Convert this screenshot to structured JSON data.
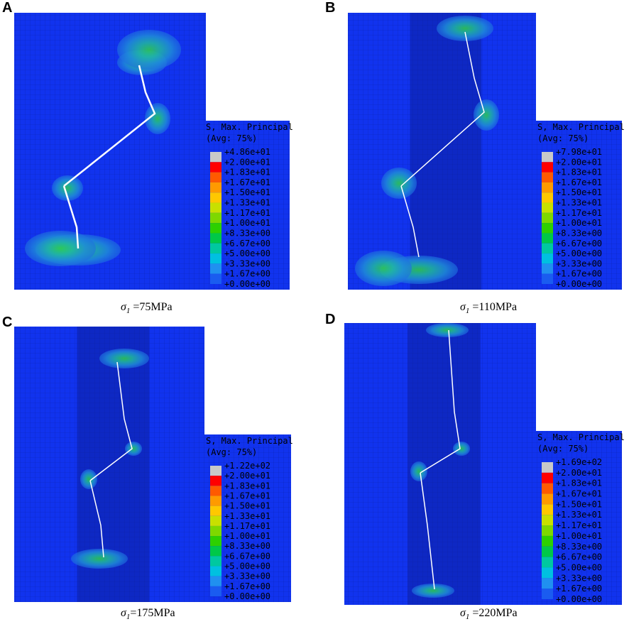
{
  "panels": [
    {
      "label": "A",
      "legend_title": [
        "S, Max. Principal",
        "(Avg: 75%)"
      ],
      "legend": [
        "+4.86e+01",
        "+2.00e+01",
        "+1.83e+01",
        "+1.67e+01",
        "+1.50e+01",
        "+1.33e+01",
        "+1.17e+01",
        "+1.00e+01",
        "+8.33e+00",
        "+6.67e+00",
        "+5.00e+00",
        "+3.33e+00",
        "+1.67e+00",
        "+0.00e+00"
      ],
      "caption": {
        "symbol": "σ",
        "subscript": "1",
        "text": " =75MPa"
      }
    },
    {
      "label": "B",
      "legend_title": [
        "S, Max. Principal",
        "(Avg: 75%)"
      ],
      "legend": [
        "+7.98e+01",
        "+2.00e+01",
        "+1.83e+01",
        "+1.67e+01",
        "+1.50e+01",
        "+1.33e+01",
        "+1.17e+01",
        "+1.00e+01",
        "+8.33e+00",
        "+6.67e+00",
        "+5.00e+00",
        "+3.33e+00",
        "+1.67e+00",
        "+0.00e+00"
      ],
      "caption": {
        "symbol": "σ",
        "subscript": "1",
        "text": " =110MPa"
      }
    },
    {
      "label": "C",
      "legend_title": [
        "S, Max. Principal",
        "(Avg: 75%)"
      ],
      "legend": [
        "+1.22e+02",
        "+2.00e+01",
        "+1.83e+01",
        "+1.67e+01",
        "+1.50e+01",
        "+1.33e+01",
        "+1.17e+01",
        "+1.00e+01",
        "+8.33e+00",
        "+6.67e+00",
        "+5.00e+00",
        "+3.33e+00",
        "+1.67e+00",
        "+0.00e+00"
      ],
      "caption": {
        "symbol": "σ",
        "subscript": "1",
        "text": "=175MPa"
      }
    },
    {
      "label": "D",
      "legend_title": [
        "S, Max. Principal",
        "(Avg: 75%)"
      ],
      "legend": [
        "+1.69e+02",
        "+2.00e+01",
        "+1.83e+01",
        "+1.67e+01",
        "+1.50e+01",
        "+1.33e+01",
        "+1.17e+01",
        "+1.00e+01",
        "+8.33e+00",
        "+6.67e+00",
        "+5.00e+00",
        "+3.33e+00",
        "+1.67e+00",
        "+0.00e+00"
      ],
      "caption": {
        "symbol": "σ",
        "subscript": "1",
        "text": " =220MPa"
      }
    }
  ]
}
